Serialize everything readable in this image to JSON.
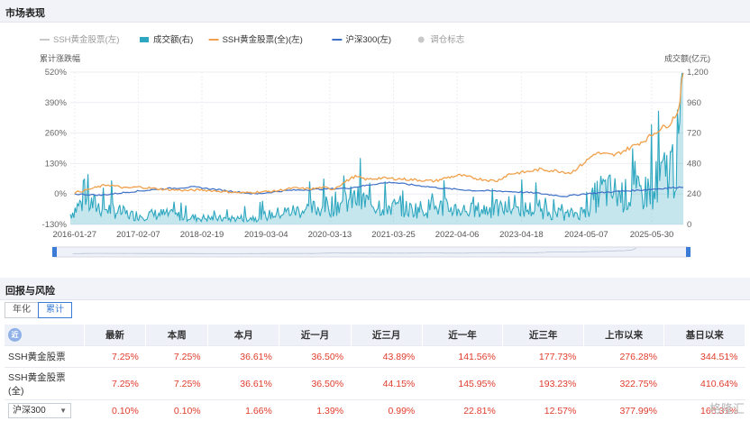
{
  "section1_title": "市场表现",
  "section2_title": "回报与风险",
  "chart_data": {
    "type": "line",
    "legend": [
      {
        "name": "SSH黄金股票(左)",
        "color": "#c8c8c8",
        "kind": "line"
      },
      {
        "name": "成交额(右)",
        "color": "#2ea7c0",
        "kind": "area"
      },
      {
        "name": "SSH黄金股票(全)(左)",
        "color": "#f0a04b",
        "kind": "line"
      },
      {
        "name": "沪深300(左)",
        "color": "#3c6fc6",
        "kind": "line"
      },
      {
        "name": "调仓标志",
        "color": "#c8c8c8",
        "kind": "dot"
      }
    ],
    "ylabel_left": "累计涨跌幅",
    "ylabel_right": "成交额(亿元)",
    "left_ticks": [
      "520%",
      "390%",
      "260%",
      "130%",
      "0%",
      "-130%"
    ],
    "left_values": [
      520,
      390,
      260,
      130,
      0,
      -130
    ],
    "right_ticks": [
      "1,200",
      "960",
      "720",
      "480",
      "240",
      "0"
    ],
    "right_values": [
      1200,
      960,
      720,
      480,
      240,
      0
    ],
    "ylim_left": [
      -130,
      520
    ],
    "ylim_right": [
      0,
      1200
    ],
    "xlim": [
      2016.0,
      2025.92
    ],
    "x_ticks": [
      "2016-01-27",
      "2017-02-07",
      "2018-02-19",
      "2019-03-04",
      "2020-03-13",
      "2021-03-25",
      "2022-04-06",
      "2023-04-18",
      "2024-05-07",
      "2025-05-30"
    ],
    "x_tick_values": [
      2016.07,
      2017.1,
      2018.13,
      2019.17,
      2020.2,
      2021.23,
      2022.26,
      2023.3,
      2024.35,
      2025.41
    ],
    "gold_full": {
      "x": [
        2016.07,
        2016.3,
        2016.6,
        2016.9,
        2017.1,
        2017.5,
        2017.9,
        2018.1,
        2018.5,
        2018.8,
        2019.0,
        2019.3,
        2019.6,
        2019.9,
        2020.1,
        2020.25,
        2020.5,
        2020.6,
        2020.8,
        2021.0,
        2021.3,
        2021.6,
        2021.9,
        2022.1,
        2022.3,
        2022.6,
        2022.9,
        2023.1,
        2023.4,
        2023.6,
        2023.9,
        2024.1,
        2024.3,
        2024.5,
        2024.8,
        2025.0,
        2025.3,
        2025.5,
        2025.7,
        2025.85,
        2025.9
      ],
      "y": [
        5,
        20,
        40,
        25,
        30,
        20,
        15,
        18,
        10,
        5,
        8,
        12,
        25,
        22,
        28,
        20,
        60,
        75,
        62,
        68,
        65,
        60,
        55,
        70,
        80,
        65,
        55,
        85,
        95,
        105,
        98,
        90,
        130,
        175,
        165,
        190,
        230,
        270,
        300,
        360,
        500
      ]
    },
    "hs300": {
      "x": [
        2016.07,
        2016.5,
        2017.0,
        2017.5,
        2018.0,
        2018.5,
        2019.0,
        2019.5,
        2020.0,
        2020.5,
        2021.0,
        2021.2,
        2021.5,
        2022.0,
        2022.5,
        2023.0,
        2023.5,
        2024.0,
        2024.3,
        2024.8,
        2025.3,
        2025.9
      ],
      "y": [
        0,
        -5,
        10,
        22,
        30,
        15,
        0,
        15,
        20,
        25,
        45,
        50,
        40,
        25,
        15,
        12,
        5,
        -10,
        0,
        10,
        18,
        30
      ]
    },
    "turnover": {
      "x": [
        2016.0,
        2016.2,
        2016.5,
        2016.8,
        2017.0,
        2017.5,
        2018.0,
        2018.5,
        2019.0,
        2019.5,
        2020.0,
        2020.3,
        2020.6,
        2021.0,
        2021.5,
        2022.0,
        2022.5,
        2023.0,
        2023.5,
        2024.0,
        2024.3,
        2024.6,
        2025.0,
        2025.3,
        2025.6,
        2025.8,
        2025.9
      ],
      "y": [
        90,
        200,
        150,
        110,
        80,
        90,
        60,
        50,
        60,
        110,
        140,
        180,
        220,
        170,
        130,
        150,
        120,
        140,
        130,
        80,
        110,
        300,
        250,
        280,
        420,
        550,
        880
      ]
    }
  },
  "tabs": [
    "年化",
    "累计"
  ],
  "table": {
    "corner_label": "近",
    "headers": [
      "最新",
      "本周",
      "本月",
      "近一月",
      "近三月",
      "近一年",
      "近三年",
      "上市以来",
      "基日以来"
    ],
    "rows": [
      {
        "name": "SSH黄金股票",
        "values": [
          "7.25%",
          "7.25%",
          "36.61%",
          "36.50%",
          "43.89%",
          "141.56%",
          "177.73%",
          "276.28%",
          "344.51%"
        ]
      },
      {
        "name": "SSH黄金股票(全)",
        "values": [
          "7.25%",
          "7.25%",
          "36.61%",
          "36.50%",
          "44.15%",
          "145.95%",
          "193.23%",
          "322.75%",
          "410.64%"
        ]
      },
      {
        "name": "沪深300",
        "values": [
          "0.10%",
          "0.10%",
          "1.66%",
          "1.39%",
          "0.99%",
          "22.81%",
          "12.57%",
          "377.99%",
          "166.31%"
        ]
      }
    ]
  },
  "watermark": "格隆汇"
}
